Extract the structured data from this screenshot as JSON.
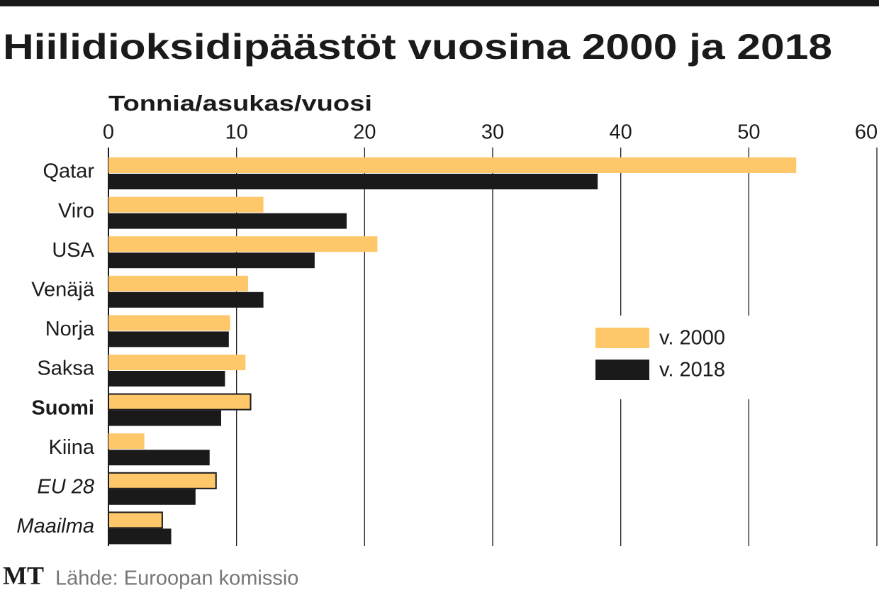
{
  "chart_data": {
    "type": "bar",
    "orientation": "horizontal",
    "title": "Hiilidioksidipäästöt vuosina 2000 ja 2018",
    "x_label": "Tonnia/asukas/vuosi",
    "categories": [
      "Qatar",
      "Viro",
      "USA",
      "Venäjä",
      "Norja",
      "Saksa",
      "Suomi",
      "Kiina",
      "EU 28",
      "Maailma"
    ],
    "series": [
      {
        "name": "v. 2000",
        "color": "#fdc76a",
        "values": [
          53.7,
          12.1,
          21.0,
          10.9,
          9.5,
          10.7,
          11.1,
          2.8,
          8.4,
          4.2
        ]
      },
      {
        "name": "v. 2018",
        "color": "#1a1a1a",
        "values": [
          38.2,
          18.6,
          16.1,
          12.1,
          9.4,
          9.1,
          8.8,
          7.9,
          6.8,
          4.9
        ]
      }
    ],
    "xlim": [
      0,
      60
    ],
    "xticks": [
      0,
      10,
      20,
      30,
      40,
      50,
      60
    ],
    "grid": true,
    "logo": "MT",
    "source": "Lähde: Euroopan komissio"
  }
}
